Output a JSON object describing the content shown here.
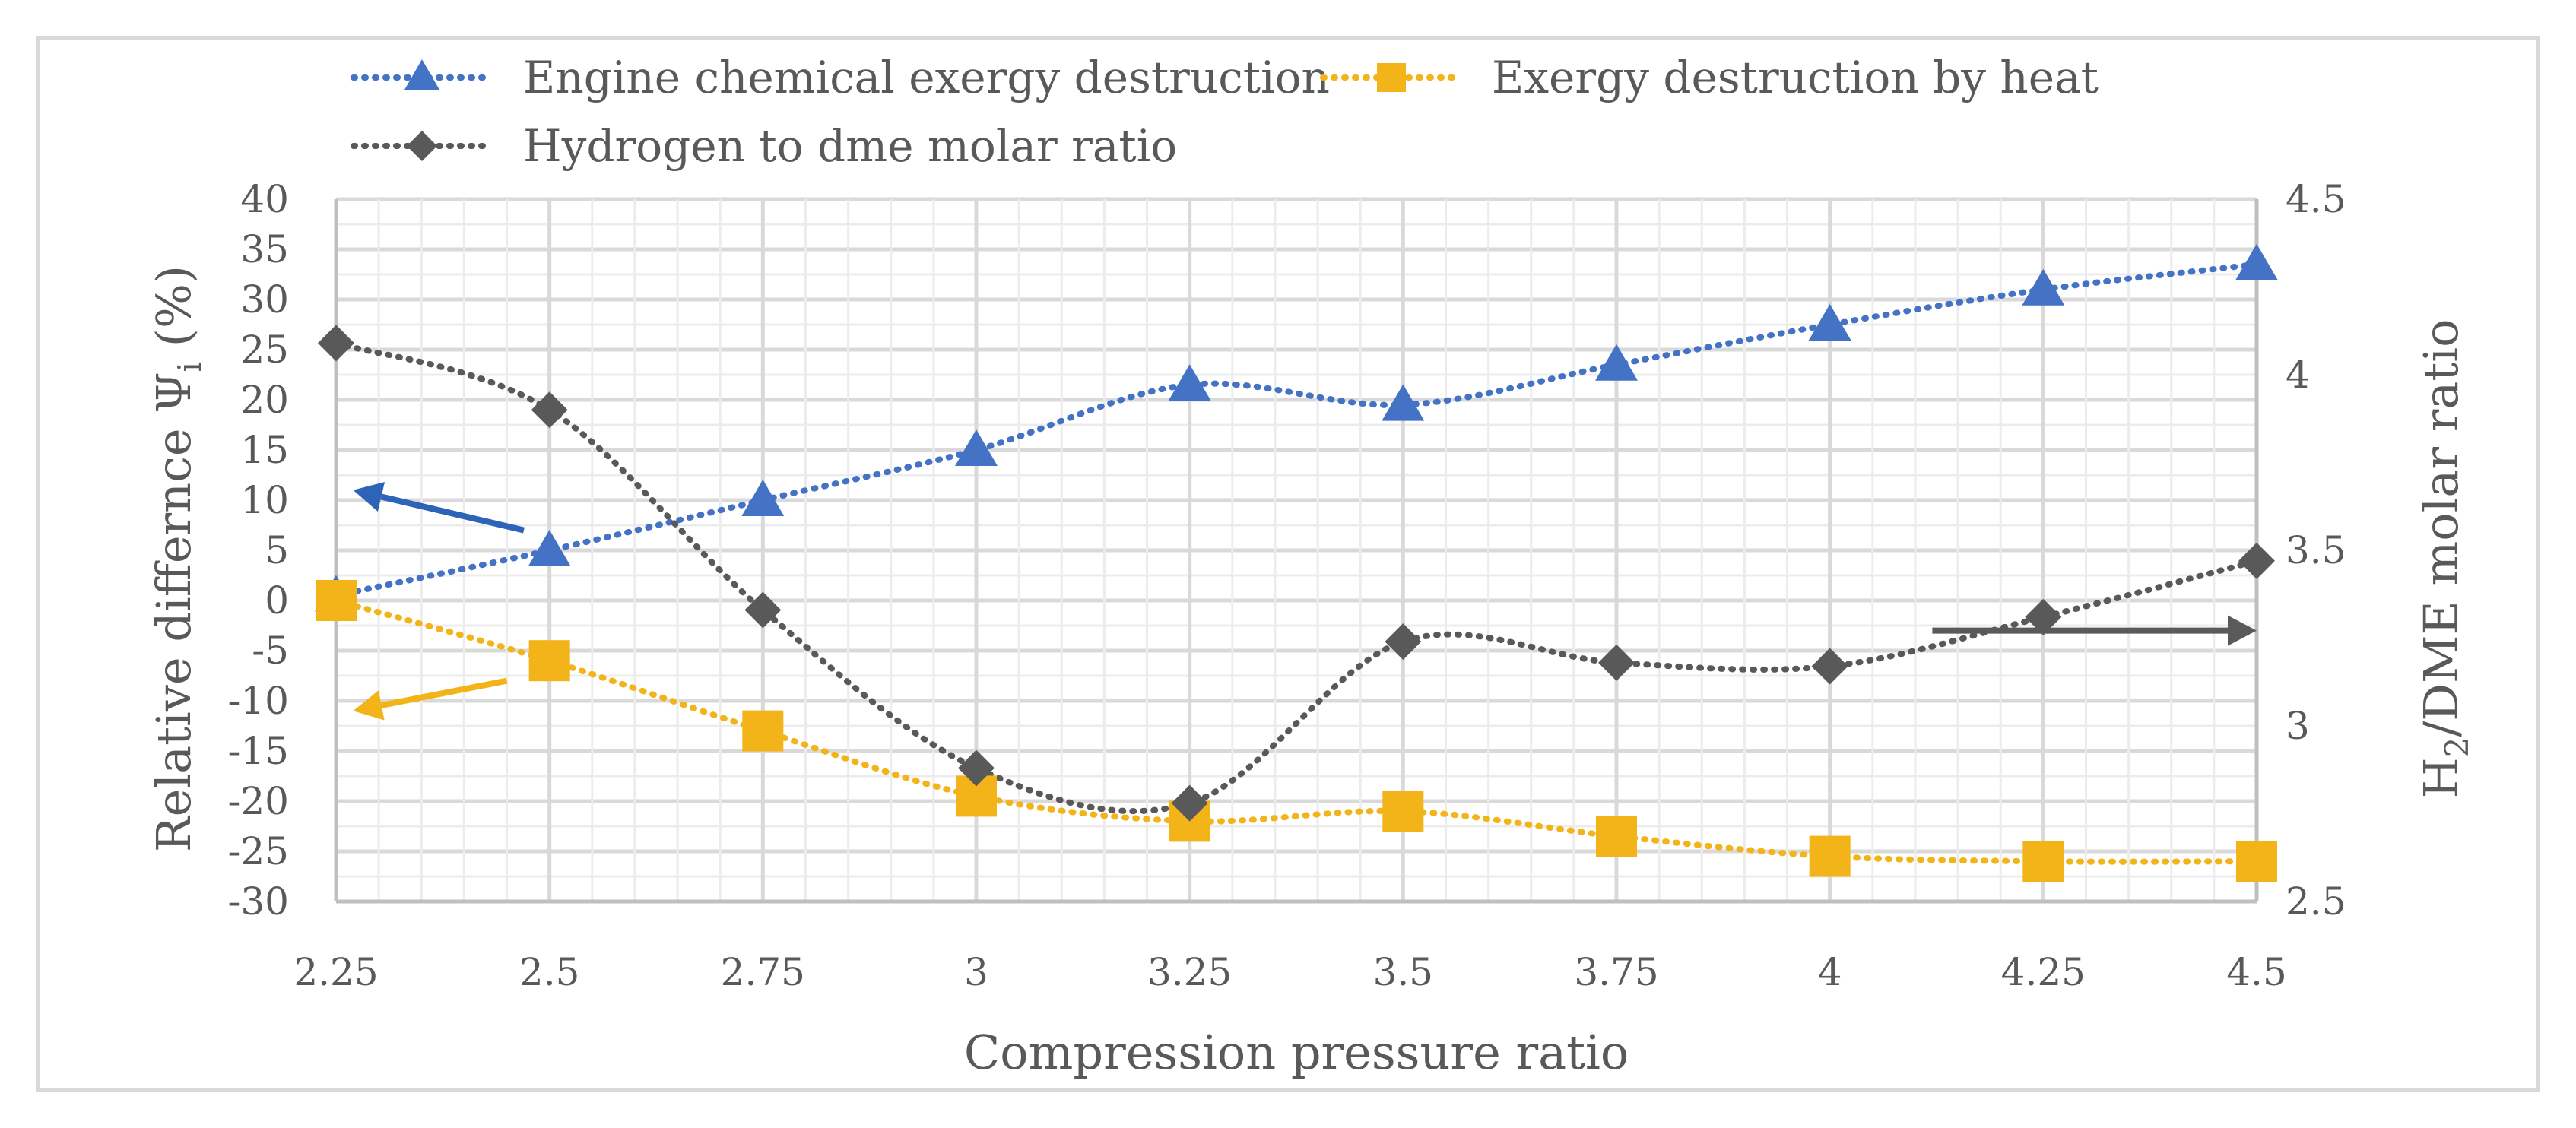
{
  "chart_data": {
    "type": "line",
    "x": [
      2.25,
      2.5,
      2.75,
      3,
      3.25,
      3.5,
      3.75,
      4,
      4.25,
      4.5
    ],
    "x_tick_labels": [
      "2.25",
      "2.5",
      "2.75",
      "3",
      "3.25",
      "3.5",
      "3.75",
      "4",
      "4.25",
      "4.5"
    ],
    "xlabel": "Compression pressure ratio",
    "ylabel_left": {
      "main": "Relative differnce Ψ",
      "sub": "i",
      "unit": " (%)"
    },
    "ylabel_right": {
      "pre": "H",
      "sub": "2",
      "post": "/DME molar ratio"
    },
    "ylim_left": [
      -30,
      40
    ],
    "y_left_ticks": [
      -30,
      -25,
      -20,
      -15,
      -10,
      -5,
      0,
      5,
      10,
      15,
      20,
      25,
      30,
      35,
      40
    ],
    "ylim_right": [
      2.5,
      4.5
    ],
    "y_right_ticks": [
      "2.5",
      "3",
      "3.5",
      "4",
      "4.5"
    ],
    "series": [
      {
        "name": "Engine chemical exergy destruction",
        "axis": "left",
        "marker": "triangle",
        "color": "#4472c4",
        "values": [
          0.5,
          5,
          10,
          15,
          21.5,
          19.5,
          23.5,
          27.5,
          31,
          33.5
        ]
      },
      {
        "name": "Exergy destruction by heat",
        "axis": "left",
        "marker": "square",
        "color": "#f2b418",
        "values": [
          0,
          -6,
          -13,
          -19.5,
          -22,
          -21,
          -23.5,
          -25.5,
          -26,
          -26
        ]
      },
      {
        "name": "Hydrogen to dme molar ratio",
        "axis": "right",
        "marker": "diamond",
        "color": "#595959",
        "values": [
          4.09,
          3.9,
          3.33,
          2.88,
          2.78,
          3.24,
          3.18,
          3.17,
          3.31,
          3.47
        ]
      }
    ],
    "annotations": [
      {
        "type": "arrow",
        "color": "#2e64b8",
        "points_to": "left axis",
        "from": {
          "x": 2.47,
          "y": 7
        },
        "to": {
          "x": 2.27,
          "y": 11
        }
      },
      {
        "type": "arrow",
        "color": "#f2b418",
        "points_to": "left axis",
        "from": {
          "x": 2.45,
          "y": -8
        },
        "to": {
          "x": 2.27,
          "y": -11
        }
      },
      {
        "type": "arrow",
        "color": "#5a5a5a",
        "points_to": "right axis",
        "from": {
          "x": 4.12,
          "y": -3
        },
        "to": {
          "x": 4.5,
          "y": -3
        }
      }
    ]
  }
}
